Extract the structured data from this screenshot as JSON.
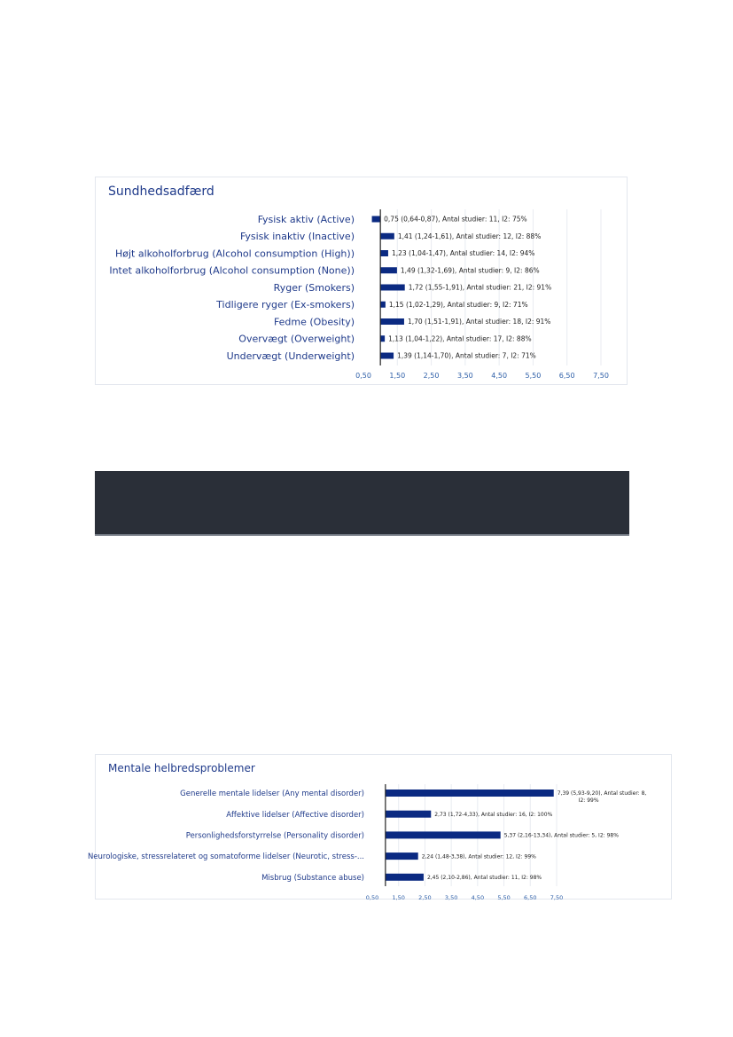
{
  "colors": {
    "bar": "#0b2a82",
    "axis": "#222222",
    "grid": "#e8ebf1",
    "title": "#1f3a8a",
    "tick": "#2e5fa8",
    "dark_bar": "#2a2f38"
  },
  "chart_data": [
    {
      "type": "bar",
      "orientation": "horizontal",
      "title": "Sundhedsadfærd",
      "categories": [
        "Fysisk aktiv (Active)",
        "Fysisk inaktiv (Inactive)",
        "Højt alkoholforbrug (Alcohol consumption (High))",
        "Intet alkoholforbrug (Alcohol consumption (None))",
        "Ryger (Smokers)",
        "Tidligere ryger (Ex-smokers)",
        "Fedme (Obesity)",
        "Overvægt (Overweight)",
        "Undervægt (Underweight)"
      ],
      "values": [
        0.75,
        1.41,
        1.23,
        1.49,
        1.72,
        1.15,
        1.7,
        1.13,
        1.39
      ],
      "baseline": 1.0,
      "data_labels": [
        [
          "0,75 (0,64-0,87),  Antal studier: 11,   I2: 75%"
        ],
        [
          "1,41 (1,24-1,61),  Antal studier: 12,   I2: 88%"
        ],
        [
          "1,23 (1,04-1,47),  Antal studier: 14,   I2: 94%"
        ],
        [
          "1,49 (1,32-1,69),  Antal studier: 9,   I2: 86%"
        ],
        [
          "1,72 (1,55-1,91),  Antal studier: 21,   I2: 91%"
        ],
        [
          "1,15 (1,02-1,29),  Antal studier: 9,   I2: 71%"
        ],
        [
          "1,70 (1,51-1,91),  Antal studier: 18,   I2: 91%"
        ],
        [
          "1,13 (1,04-1,22),  Antal studier: 17,   I2: 88%"
        ],
        [
          "1,39 (1,14-1,70),  Antal studier: 7,   I2: 71%"
        ]
      ],
      "xticks": [
        0.5,
        1.5,
        2.5,
        3.5,
        4.5,
        5.5,
        6.5,
        7.5
      ],
      "xtick_labels": [
        "0,50",
        "1,50",
        "2,50",
        "3,50",
        "4,50",
        "5,50",
        "6,50",
        "7,50"
      ],
      "xlim": [
        0.5,
        7.5
      ],
      "grid": true
    },
    {
      "type": "bar",
      "orientation": "horizontal",
      "title": "Mentale helbredsproblemer",
      "categories": [
        "Generelle mentale lidelser (Any mental disorder)",
        "Affektive lidelser (Affective disorder)",
        "Personlighedsforstyrrelse (Personality disorder)",
        "Neurologiske, stressrelateret og  somatoforme lidelser (Neurotic, stress-...",
        "Misbrug (Substance abuse)"
      ],
      "values": [
        7.39,
        2.73,
        5.37,
        2.24,
        2.45
      ],
      "baseline": 1.0,
      "data_labels": [
        [
          "7,39 (5,93-9,20),  Antal studier: 8,",
          "I2: 99%"
        ],
        [
          "2,73 (1,72-4,33),  Antal studier: 16,   I2: 100%"
        ],
        [
          "5,37 (2,16-13,34),  Antal studier: 5,   I2: 98%"
        ],
        [
          "2,24 (1,48-3,38),  Antal studier: 12,   I2: 99%"
        ],
        [
          "2,45 (2,10-2,86),  Antal studier: 11,   I2: 98%"
        ]
      ],
      "xticks": [
        0.5,
        1.5,
        2.5,
        3.5,
        4.5,
        5.5,
        6.5,
        7.5
      ],
      "xtick_labels": [
        "0,50",
        "1,50",
        "2,50",
        "3,50",
        "4,50",
        "5,50",
        "6,50",
        "7,50"
      ],
      "xlim": [
        0.5,
        7.5
      ],
      "grid": true
    }
  ]
}
